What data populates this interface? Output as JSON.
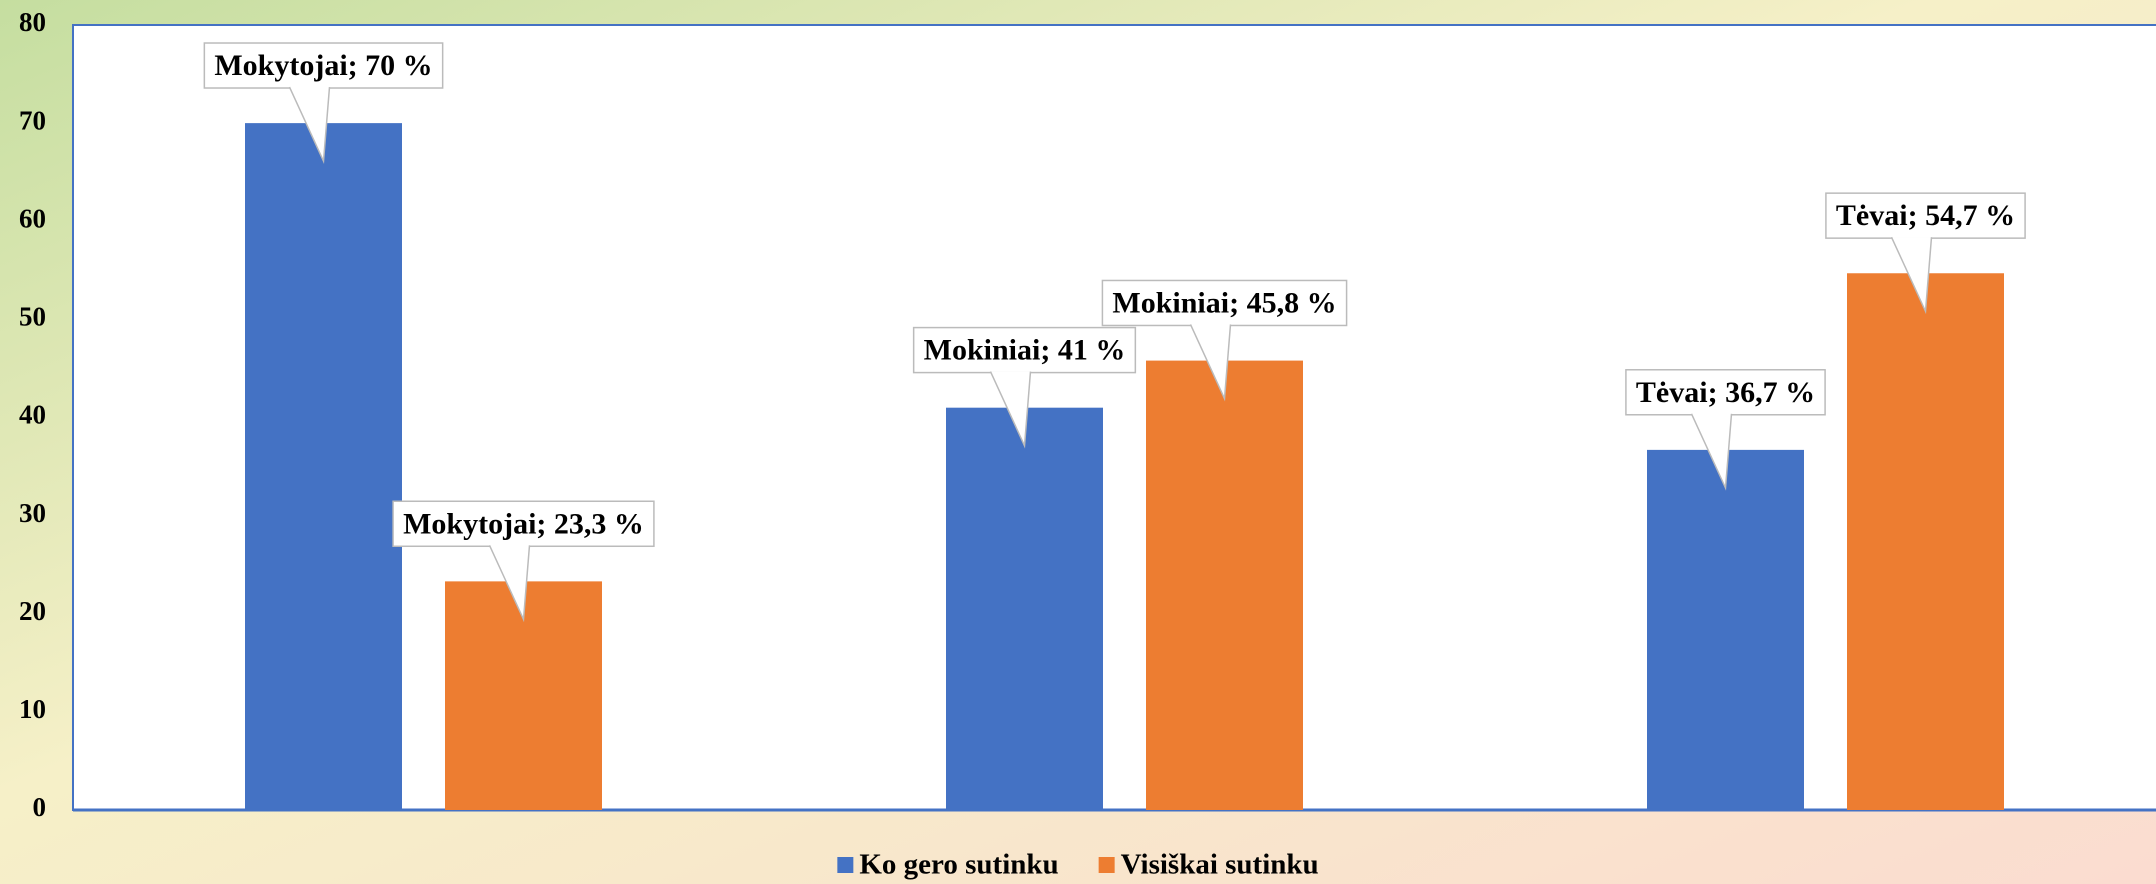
{
  "chart_data": {
    "type": "bar",
    "categories": [
      null,
      null,
      null
    ],
    "series": [
      {
        "name": "Ko gero sutinku",
        "color": "#4472c4",
        "values": [
          70,
          41,
          36.7
        ],
        "value_labels": [
          "Mokytojai; 70 %",
          "Mokiniai; 41 %",
          "Tėvai; 36,7 %"
        ]
      },
      {
        "name": "Visiškai sutinku",
        "color": "#ed7d31",
        "values": [
          23.3,
          45.8,
          54.7
        ],
        "value_labels": [
          "Mokytojai; 23,3 %",
          "Mokiniai; 45,8 %",
          "Tėvai; 54,7 %"
        ]
      }
    ],
    "ylim": [
      0,
      80
    ],
    "yticks": [
      0,
      10,
      20,
      30,
      40,
      50,
      60,
      70,
      80
    ],
    "legend": "bottom"
  }
}
